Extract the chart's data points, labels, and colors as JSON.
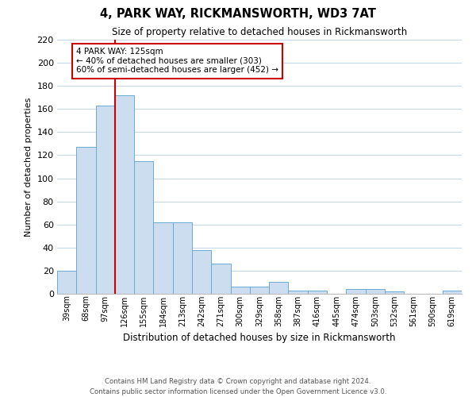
{
  "title": "4, PARK WAY, RICKMANSWORTH, WD3 7AT",
  "subtitle": "Size of property relative to detached houses in Rickmansworth",
  "xlabel": "Distribution of detached houses by size in Rickmansworth",
  "ylabel": "Number of detached properties",
  "categories": [
    "39sqm",
    "68sqm",
    "97sqm",
    "126sqm",
    "155sqm",
    "184sqm",
    "213sqm",
    "242sqm",
    "271sqm",
    "300sqm",
    "329sqm",
    "358sqm",
    "387sqm",
    "416sqm",
    "445sqm",
    "474sqm",
    "503sqm",
    "532sqm",
    "561sqm",
    "590sqm",
    "619sqm"
  ],
  "values": [
    20,
    127,
    163,
    172,
    115,
    62,
    62,
    38,
    26,
    6,
    6,
    10,
    3,
    3,
    0,
    4,
    4,
    2,
    0,
    0,
    3
  ],
  "bar_color": "#ccddf0",
  "bar_edge_color": "#6aaad4",
  "grid_color": "#c8d8ec",
  "background_color": "#ffffff",
  "ylim": [
    0,
    220
  ],
  "yticks": [
    0,
    20,
    40,
    60,
    80,
    100,
    120,
    140,
    160,
    180,
    200,
    220
  ],
  "marker_label": "4 PARK WAY: 125sqm",
  "annotation_line1": "← 40% of detached houses are smaller (303)",
  "annotation_line2": "60% of semi-detached houses are larger (452) →",
  "annotation_box_edge": "#cc0000",
  "marker_line_color": "#cc0000",
  "footer_line1": "Contains HM Land Registry data © Crown copyright and database right 2024.",
  "footer_line2": "Contains public sector information licensed under the Open Government Licence v3.0."
}
